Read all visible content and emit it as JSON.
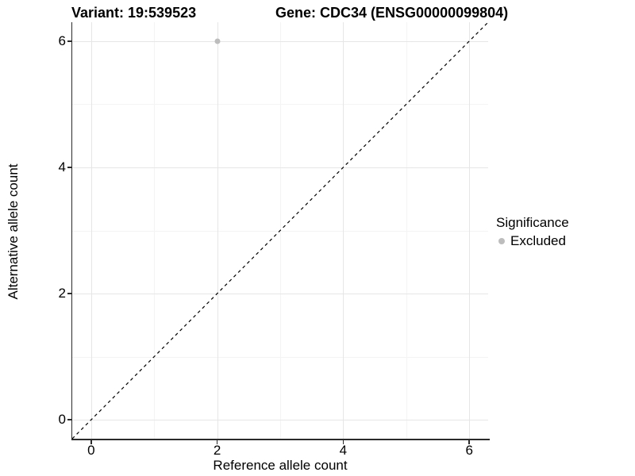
{
  "titles": {
    "variant": "Variant: 19:539523",
    "gene": "Gene: CDC34 (ENSG00000099804)"
  },
  "axes": {
    "x_label": "Reference allele count",
    "y_label": "Alternative allele count",
    "x_tick_labels": [
      "0",
      "2",
      "4",
      "6"
    ],
    "y_tick_labels": [
      "0",
      "2",
      "4",
      "6"
    ]
  },
  "legend": {
    "title": "Significance",
    "position": "right",
    "entries": [
      {
        "label": "Excluded",
        "color": "#bdbdbd"
      }
    ]
  },
  "colors": {
    "background": "#ffffff",
    "axis_line": "#2b2b2b",
    "grid_major": "#e6e6e6",
    "grid_minor": "#f4f4f4",
    "reference_line": "#000000",
    "point": "#bdbdbd",
    "text": "#000000"
  },
  "chart_data": {
    "type": "scatter",
    "title": "Variant: 19:539523   Gene: CDC34 (ENSG00000099804)",
    "xlabel": "Reference allele count",
    "ylabel": "Alternative allele count",
    "xlim": [
      -0.3,
      6.3
    ],
    "ylim": [
      -0.3,
      6.3
    ],
    "x_ticks": [
      0,
      2,
      4,
      6
    ],
    "y_ticks": [
      0,
      2,
      4,
      6
    ],
    "x_minor": [
      1,
      3,
      5
    ],
    "y_minor": [
      1,
      3,
      5
    ],
    "grid": true,
    "reference_line": {
      "kind": "identity",
      "style": "dashed",
      "color": "#000000",
      "width": 1.2
    },
    "series": [
      {
        "name": "Excluded",
        "color": "#bdbdbd",
        "point_diameter": 7,
        "points": [
          {
            "x": 2,
            "y": 6
          }
        ]
      }
    ],
    "legend_position": "right"
  }
}
